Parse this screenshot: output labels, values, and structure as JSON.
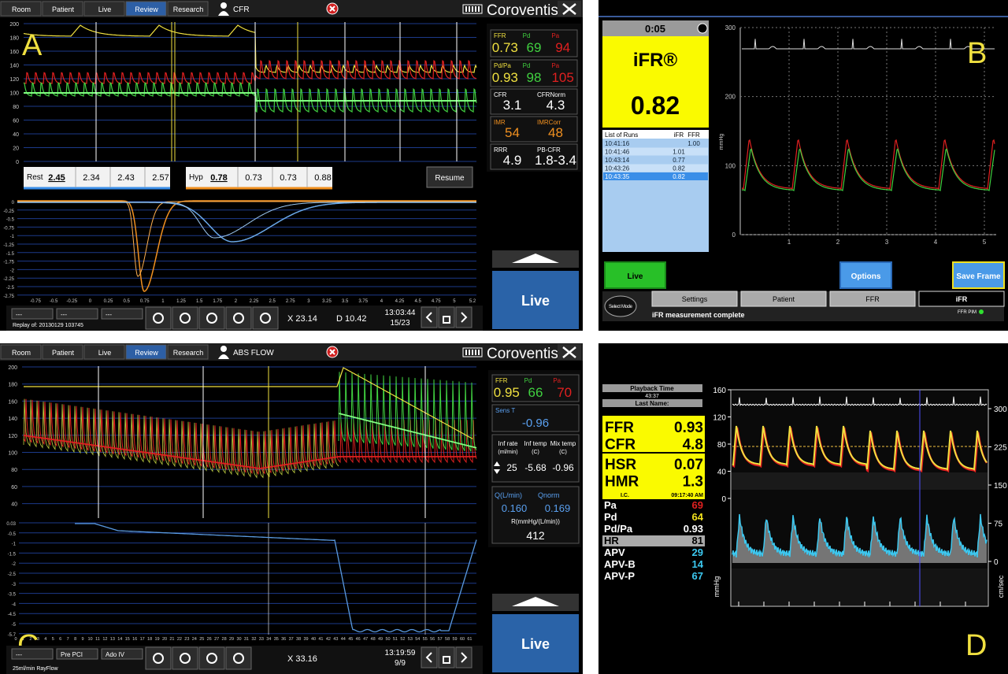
{
  "panel_a": {
    "label": "A",
    "tabs": [
      "Room",
      "Patient",
      "Live",
      "Review",
      "Research"
    ],
    "mode": "CFR",
    "brand": "Coroventis",
    "pressure_ticks": [
      200,
      180,
      160,
      140,
      120,
      100,
      80,
      60,
      40,
      20,
      0
    ],
    "rest": {
      "label": "Rest",
      "values": [
        "2.45",
        "2.34",
        "2.43",
        "2.57"
      ]
    },
    "hyp": {
      "label": "Hyp",
      "values": [
        "0.78",
        "0.73",
        "0.73",
        "0.88"
      ]
    },
    "resume": "Resume",
    "flow_yticks": [
      0,
      -0.25,
      -0.5,
      -0.75,
      -1,
      -1.25,
      -1.5,
      -1.75,
      -2,
      -2.25,
      -2.5,
      -2.75
    ],
    "flow_xticks": [
      -0.75,
      -0.5,
      -0.25,
      0,
      0.25,
      0.5,
      0.75,
      1,
      1.25,
      1.5,
      1.75,
      2,
      2.25,
      2.5,
      2.75,
      3,
      3.25,
      3.5,
      3.75,
      4,
      4.25,
      4.5,
      4.75,
      5,
      5.2
    ],
    "selectors": [
      "---",
      "---",
      "---"
    ],
    "replay": "Replay of: 20130129 103745",
    "x_readout": "X 23.14",
    "d_readout": "D 10.42",
    "time": "13:03:44",
    "frame": "15/23",
    "ffr": {
      "labels": [
        "FFR",
        "Pd",
        "Pa"
      ],
      "values": [
        "0.73",
        "69",
        "94"
      ]
    },
    "pdpa": {
      "labels": [
        "Pd/Pa",
        "Pd",
        "Pa"
      ],
      "values": [
        "0.93",
        "98",
        "105"
      ]
    },
    "cfr": {
      "labels": [
        "CFR",
        "CFRNorm"
      ],
      "values": [
        "3.1",
        "4.3"
      ]
    },
    "imr": {
      "labels": [
        "IMR",
        "IMRCorr"
      ],
      "values": [
        "54",
        "48"
      ]
    },
    "rrr": {
      "labels": [
        "RRR",
        "PB-CFR"
      ],
      "values": [
        "4.9",
        "1.8-3.4"
      ]
    },
    "live": "Live"
  },
  "panel_b": {
    "label": "B",
    "timer": "0:05",
    "index_name": "iFR®",
    "index_value": "0.82",
    "runs_header": [
      "List of Runs",
      "iFR",
      "FFR"
    ],
    "runs": [
      {
        "time": "10:41:16",
        "ffr": "1.00"
      },
      {
        "time": "10:41:46",
        "ifr": "1.01"
      },
      {
        "time": "10:43:14",
        "ifr": "0.77"
      },
      {
        "time": "10:43:26",
        "ifr": "0.82"
      },
      {
        "time": "10:43:35",
        "ifr": "0.82"
      }
    ],
    "yticks": [
      300,
      200,
      100,
      0
    ],
    "xticks": [
      1,
      2,
      3,
      4,
      5
    ],
    "y_label": "mmHg",
    "buttons": [
      "Live",
      "Options",
      "Save Frame"
    ],
    "select_mode": "Select Mode",
    "tabs": [
      "Settings",
      "Patient",
      "FFR",
      "iFR"
    ],
    "status": "iFR measurement complete",
    "pim": "FFR PIM"
  },
  "panel_c": {
    "label": "C",
    "tabs": [
      "Room",
      "Patient",
      "Live",
      "Review",
      "Research"
    ],
    "mode": "ABS FLOW",
    "brand": "Coroventis",
    "pressure_ticks": [
      200,
      180,
      160,
      140,
      120,
      100,
      80,
      60,
      40
    ],
    "temp_yticks": [
      0.03,
      -0.5,
      -1,
      -1.5,
      -2,
      -2.5,
      -3,
      -3.5,
      -4,
      -4.5,
      -5,
      -5.7
    ],
    "temp_xticks": [
      0,
      1,
      2,
      3,
      4,
      5,
      6,
      7,
      8,
      9,
      10,
      11,
      12,
      13,
      14,
      15,
      16,
      17,
      18,
      19,
      20,
      21,
      22,
      23,
      24,
      25,
      26,
      27,
      28,
      29,
      30,
      31,
      32,
      33,
      34,
      35,
      36,
      37,
      38,
      39,
      40,
      41,
      42,
      43,
      44,
      45,
      46,
      47,
      48,
      49,
      50,
      51,
      52,
      53,
      54,
      55,
      56,
      57,
      58,
      59,
      60,
      61
    ],
    "ffr": {
      "labels": [
        "FFR",
        "Pd",
        "Pa"
      ],
      "values": [
        "0.95",
        "66",
        "70"
      ]
    },
    "sens_t": {
      "label": "Sens T",
      "value": "-0.96"
    },
    "infusion": {
      "labels": [
        "Inf rate",
        "Inf temp",
        "Mix temp"
      ],
      "units": [
        "(ml/min)",
        "(C)",
        "(C)"
      ],
      "values": [
        "25",
        "-5.68",
        "-0.96"
      ]
    },
    "flow": {
      "labels": [
        "Q(L/min)",
        "Qnorm"
      ],
      "values": [
        "0.160",
        "0.169"
      ]
    },
    "resistance": {
      "label": "R(mmHg/(L/min))",
      "value": "412"
    },
    "selectors": [
      "---",
      "Pre PCI",
      "Ado IV"
    ],
    "infusion_note": "25ml/min RayFlow",
    "x_readout": "X 33.16",
    "time": "13:19:59",
    "frame": "9/9",
    "live": "Live"
  },
  "panel_d": {
    "label": "D",
    "playback": "Playback Time",
    "playback_time": "43:37",
    "last_name": "Last Name:",
    "indices": [
      {
        "name": "FFR",
        "value": "0.93"
      },
      {
        "name": "CFR",
        "value": "4.8"
      },
      {
        "name": "HSR",
        "value": "0.07"
      },
      {
        "name": "HMR",
        "value": "1.3"
      }
    ],
    "route": "I.C.",
    "clock": "09:17:40 AM",
    "readings": [
      {
        "name": "Pa",
        "value": "69",
        "color": "#e02020"
      },
      {
        "name": "Pd",
        "value": "64",
        "color": "#f2e21e"
      },
      {
        "name": "Pd/Pa",
        "value": "0.93",
        "color": "#ffffff"
      },
      {
        "name": "HR",
        "value": "81",
        "color": "#000000"
      },
      {
        "name": "APV",
        "value": "29",
        "color": "#3cc8f0"
      },
      {
        "name": "APV-B",
        "value": "14",
        "color": "#3cc8f0"
      },
      {
        "name": "APV-P",
        "value": "67",
        "color": "#3cc8f0"
      }
    ],
    "pressure_ticks": [
      160,
      120,
      80,
      40,
      0
    ],
    "velocity_ticks": [
      300,
      225,
      150,
      75,
      0
    ],
    "pressure_label": "mmHg",
    "velocity_label": "cm/sec"
  }
}
